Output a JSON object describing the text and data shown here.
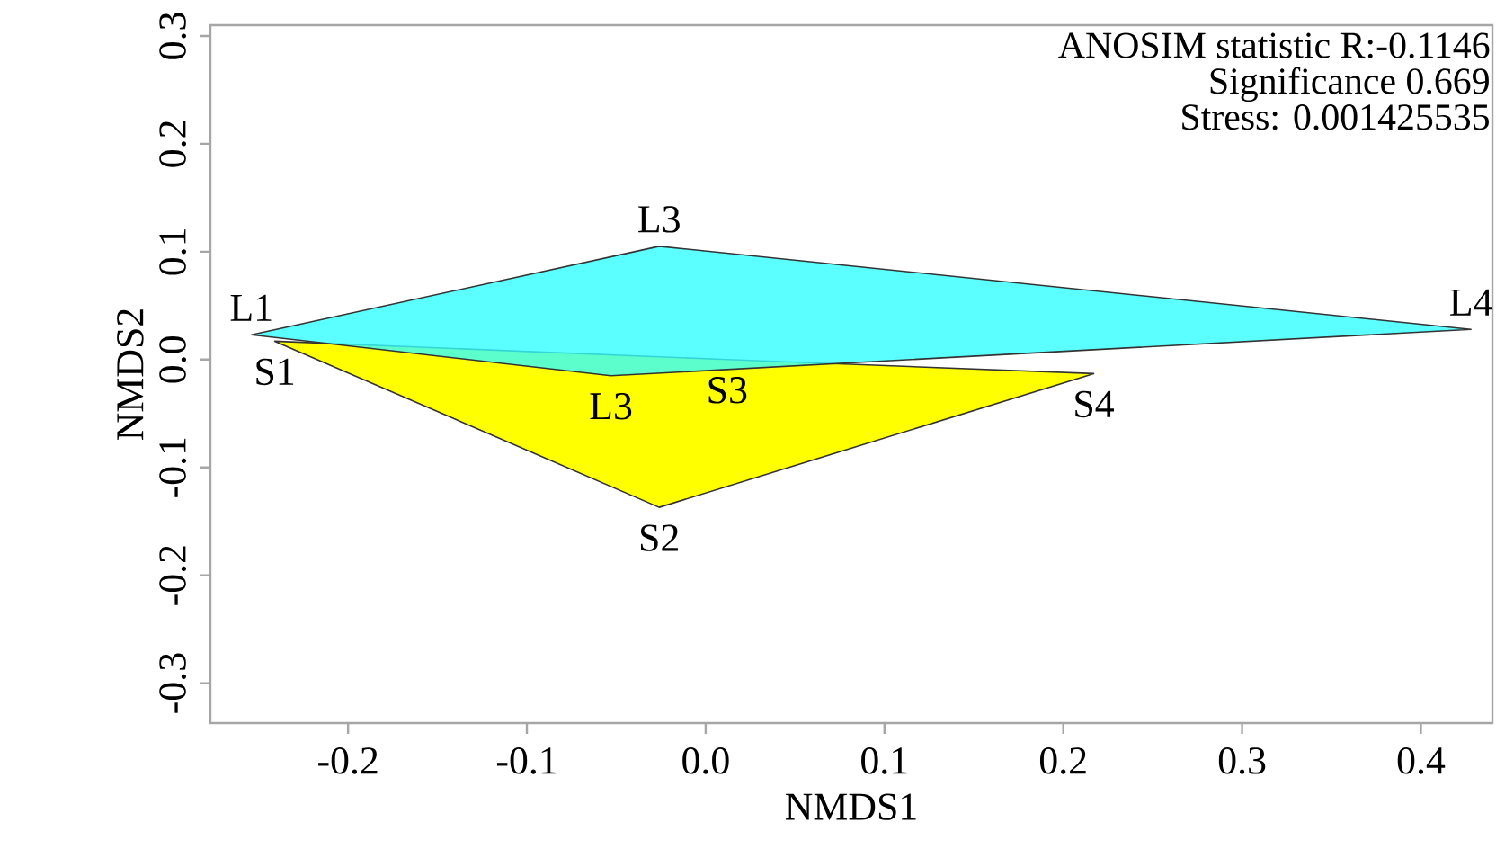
{
  "chart_data": {
    "type": "area",
    "xlabel": "NMDS1",
    "ylabel": "NMDS2",
    "xlim": [
      -0.277,
      0.44
    ],
    "ylim": [
      -0.337,
      0.31
    ],
    "xticks": [
      {
        "value": -0.2,
        "label": "-0.2"
      },
      {
        "value": -0.1,
        "label": "-0.1"
      },
      {
        "value": 0,
        "label": "0.0"
      },
      {
        "value": 0.1,
        "label": "0.1"
      },
      {
        "value": 0.2,
        "label": "0.2"
      },
      {
        "value": 0.3,
        "label": "0.3"
      },
      {
        "value": 0.4,
        "label": "0.4"
      }
    ],
    "yticks": [
      {
        "value": -0.3,
        "label": "-0.3"
      },
      {
        "value": -0.2,
        "label": "-0.2"
      },
      {
        "value": -0.1,
        "label": "-0.1"
      },
      {
        "value": 0,
        "label": "0.0"
      },
      {
        "value": 0.1,
        "label": "0.1"
      },
      {
        "value": 0.2,
        "label": "0.2"
      },
      {
        "value": 0.3,
        "label": "0.3"
      }
    ],
    "grid": false,
    "series": [
      {
        "color": "#ffff00",
        "x": [
          -0.241,
          0.012,
          0.217,
          -0.026
        ],
        "values": [
          0.017,
          0.0,
          -0.013,
          -0.137
        ]
      },
      {
        "color": "#33ffff",
        "x": [
          -0.254,
          -0.026,
          0.428,
          -0.053
        ],
        "values": [
          0.023,
          0.105,
          0.028,
          -0.015
        ]
      }
    ],
    "annotations": [
      "ANOSIM statistic R:-0.1146",
      "Significance 0.669",
      "Stress: 0.001425535",
      {
        "text": "L1",
        "x": -0.254,
        "y": 0.023
      },
      {
        "text": "S1",
        "x": -0.241,
        "y": 0.017
      },
      {
        "text": "L3",
        "x": -0.026,
        "y": 0.105
      },
      {
        "text": "L3",
        "x": -0.053,
        "y": -0.015
      },
      {
        "text": "S3",
        "x": 0.012,
        "y": 0.0
      },
      {
        "text": "S4",
        "x": 0.217,
        "y": -0.013
      },
      {
        "text": "S2",
        "x": -0.026,
        "y": -0.137
      },
      {
        "text": "L4",
        "x": 0.428,
        "y": 0.028
      }
    ]
  }
}
